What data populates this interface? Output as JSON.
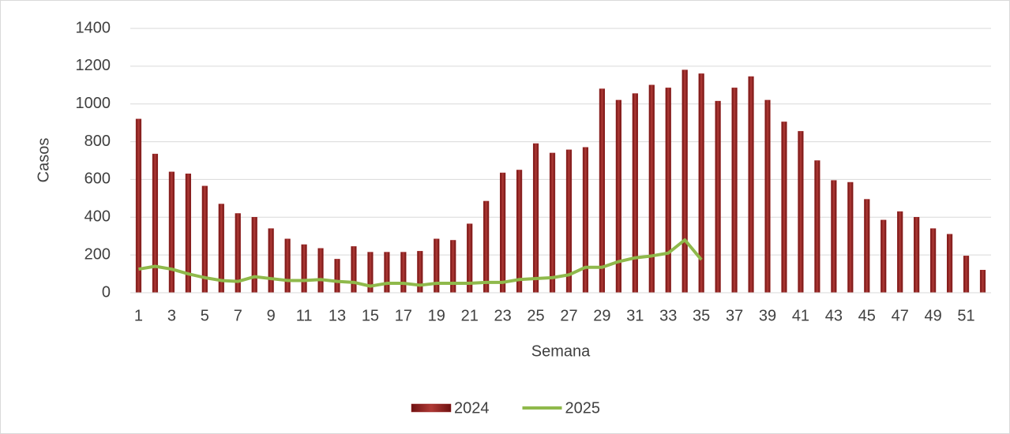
{
  "chart_data": {
    "type": "bar",
    "x_label": "Semana",
    "y_label": "Casos",
    "categories": [
      1,
      null,
      3,
      null,
      5,
      null,
      7,
      null,
      9,
      null,
      11,
      null,
      13,
      null,
      15,
      null,
      17,
      null,
      19,
      null,
      21,
      null,
      23,
      null,
      25,
      null,
      27,
      null,
      29,
      null,
      31,
      null,
      33,
      null,
      35,
      null,
      37,
      null,
      39,
      null,
      41,
      null,
      43,
      null,
      45,
      null,
      47,
      null,
      49,
      null,
      51,
      null
    ],
    "series": [
      {
        "name": "2024",
        "type": "bar",
        "color": "#9b2423",
        "values": [
          920,
          735,
          640,
          630,
          565,
          470,
          420,
          400,
          340,
          285,
          255,
          235,
          178,
          245,
          215,
          215,
          215,
          220,
          285,
          278,
          365,
          485,
          635,
          650,
          790,
          740,
          757,
          770,
          1080,
          1020,
          1055,
          1100,
          1085,
          1180,
          1160,
          1015,
          1085,
          1145,
          1020,
          905,
          855,
          700,
          595,
          585,
          495,
          385,
          430,
          400,
          340,
          310,
          195,
          120
        ]
      },
      {
        "name": "2025",
        "type": "line",
        "color": "#8fb94b",
        "values": [
          125,
          140,
          125,
          100,
          80,
          65,
          60,
          85,
          75,
          65,
          65,
          70,
          60,
          55,
          35,
          50,
          50,
          40,
          50,
          50,
          50,
          55,
          55,
          70,
          75,
          80,
          95,
          135,
          135,
          165,
          185,
          195,
          210,
          280,
          175,
          null,
          null,
          null,
          null,
          null,
          null,
          null,
          null,
          null,
          null,
          null,
          null,
          null,
          null,
          null,
          null,
          null
        ]
      }
    ],
    "ylim": [
      0,
      1400
    ],
    "yticks": [
      0,
      200,
      400,
      600,
      800,
      1000,
      1200,
      1400
    ],
    "grid": true,
    "legend": "bottom"
  }
}
